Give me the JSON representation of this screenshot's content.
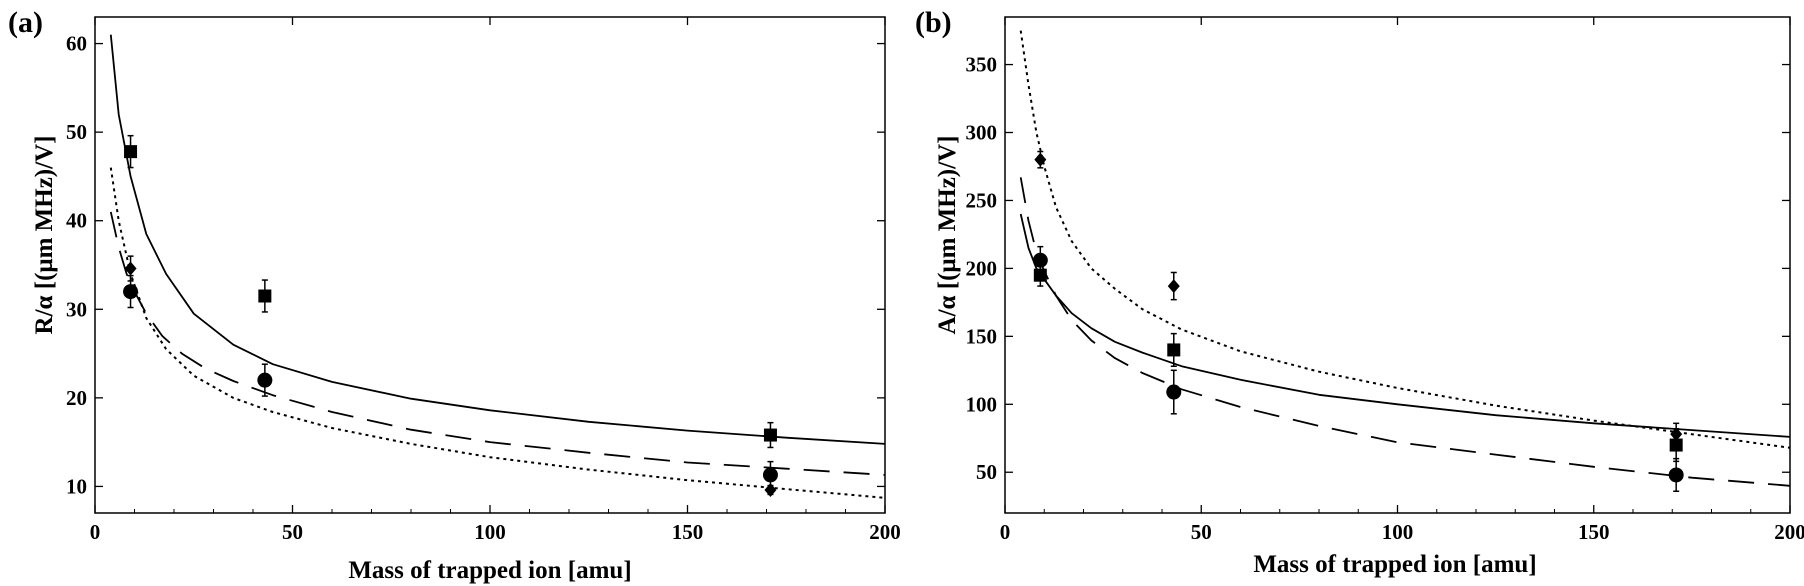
{
  "chart_data": [
    {
      "type": "scatter",
      "panel_label": "(a)",
      "xlabel": "Mass of trapped ion [amu]",
      "ylabel": "R/α [(μm MHz)/V]",
      "xlim": [
        0,
        200
      ],
      "ylim": [
        7,
        63
      ],
      "xticks": [
        0,
        50,
        100,
        150,
        200
      ],
      "yticks": [
        10,
        20,
        30,
        40,
        50,
        60
      ],
      "grid": false,
      "curves": [
        {
          "name": "solid",
          "style": "solid",
          "x": [
            4,
            6,
            9,
            13,
            18,
            25,
            35,
            45,
            60,
            80,
            100,
            125,
            150,
            175,
            200
          ],
          "y": [
            61,
            52,
            45,
            38.5,
            34,
            29.5,
            26,
            23.8,
            21.8,
            19.9,
            18.6,
            17.3,
            16.3,
            15.5,
            14.8
          ]
        },
        {
          "name": "dashed",
          "style": "dashed",
          "x": [
            4,
            6,
            8,
            10,
            13,
            17,
            22,
            28,
            35,
            45,
            60,
            80,
            100,
            125,
            150,
            175,
            200
          ],
          "y": [
            41,
            37,
            34,
            32,
            29.5,
            27,
            25,
            23.3,
            21.9,
            20.3,
            18.4,
            16.4,
            15,
            13.8,
            12.7,
            12,
            11.3
          ]
        },
        {
          "name": "dotted",
          "style": "dotted",
          "x": [
            4,
            6,
            9,
            13,
            18,
            25,
            35,
            45,
            60,
            80,
            100,
            125,
            150,
            175,
            200
          ],
          "y": [
            46,
            40,
            34,
            29,
            25.5,
            22.5,
            20,
            18.4,
            16.6,
            14.8,
            13.3,
            11.9,
            10.7,
            9.7,
            8.7
          ]
        }
      ],
      "series": [
        {
          "name": "squares",
          "marker": "square",
          "x": [
            9,
            43,
            171
          ],
          "y": [
            47.8,
            31.5,
            15.8
          ],
          "err": [
            1.8,
            1.8,
            1.4
          ]
        },
        {
          "name": "circles",
          "marker": "circle",
          "x": [
            9,
            43,
            171
          ],
          "y": [
            32,
            22,
            11.3
          ],
          "err": [
            1.8,
            1.8,
            1.5
          ]
        },
        {
          "name": "diamonds",
          "marker": "diamond",
          "x": [
            9,
            171
          ],
          "y": [
            34.6,
            9.6
          ],
          "err": [
            1.4,
            0.5
          ]
        }
      ]
    },
    {
      "type": "scatter",
      "panel_label": "(b)",
      "xlabel": "Mass of trapped ion [amu]",
      "ylabel": "A/α [(μm MHz)/V]",
      "xlim": [
        0,
        200
      ],
      "ylim": [
        20,
        385
      ],
      "xticks": [
        0,
        50,
        100,
        150,
        200
      ],
      "yticks": [
        50,
        100,
        150,
        200,
        250,
        300,
        350
      ],
      "grid": false,
      "curves": [
        {
          "name": "solid",
          "style": "solid",
          "x": [
            4,
            6,
            8,
            10,
            13,
            17,
            22,
            28,
            35,
            45,
            60,
            80,
            100,
            125,
            150,
            175,
            200
          ],
          "y": [
            240,
            215,
            200,
            192,
            180,
            167,
            156,
            146,
            138,
            128,
            118,
            107,
            100,
            92,
            86,
            81,
            76
          ]
        },
        {
          "name": "dashed",
          "style": "dashed",
          "x": [
            4,
            6,
            8,
            10,
            13,
            17,
            22,
            28,
            35,
            45,
            60,
            80,
            100,
            125,
            150,
            175,
            200
          ],
          "y": [
            267,
            235,
            212,
            198,
            180,
            162,
            147,
            134,
            123,
            111,
            98,
            84,
            72,
            63,
            54,
            46,
            40
          ]
        },
        {
          "name": "dotted",
          "style": "dotted",
          "x": [
            4,
            6,
            8,
            10,
            13,
            17,
            22,
            28,
            35,
            45,
            60,
            80,
            100,
            125,
            150,
            175,
            200
          ],
          "y": [
            375,
            335,
            300,
            275,
            245,
            220,
            200,
            185,
            170,
            155,
            139,
            124,
            112,
            99,
            88,
            78,
            68
          ]
        }
      ],
      "series": [
        {
          "name": "squares",
          "marker": "square",
          "x": [
            9,
            43,
            171
          ],
          "y": [
            195,
            140,
            70
          ],
          "err": [
            8,
            12,
            12
          ]
        },
        {
          "name": "circles",
          "marker": "circle",
          "x": [
            9,
            43,
            171
          ],
          "y": [
            206,
            109,
            48
          ],
          "err": [
            10,
            16,
            12
          ]
        },
        {
          "name": "diamonds",
          "marker": "diamond",
          "x": [
            9,
            43,
            171
          ],
          "y": [
            280,
            187,
            78
          ],
          "err": [
            6,
            10,
            8
          ]
        }
      ]
    }
  ]
}
